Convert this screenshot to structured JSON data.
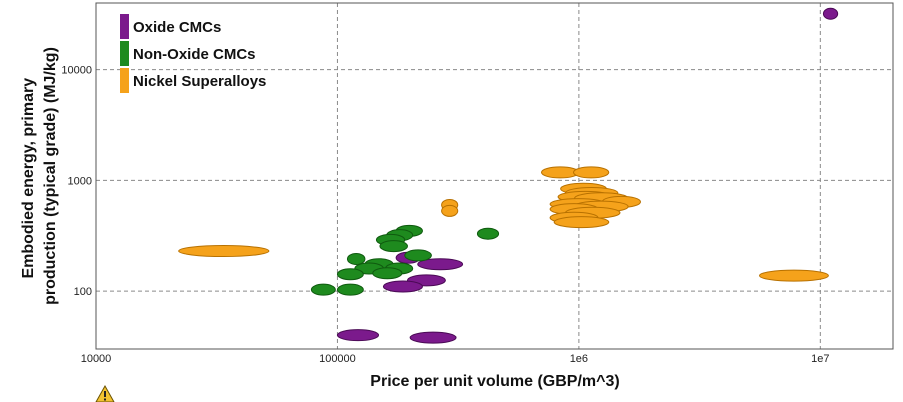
{
  "chart_data": {
    "type": "scatter",
    "xlabel": "Price per unit volume (GBP/m^3)",
    "ylabel_lines": [
      "Embodied energy, primary",
      "production (typical grade) (MJ/kg)"
    ],
    "x_scale": "log",
    "y_scale": "log",
    "xlim": [
      10000,
      20000000
    ],
    "ylim": [
      30,
      40000
    ],
    "x_ticks": [
      {
        "value": 10000,
        "label": "10000"
      },
      {
        "value": 100000,
        "label": "100000"
      },
      {
        "value": 1000000,
        "label": "1e6"
      },
      {
        "value": 10000000,
        "label": "1e7"
      }
    ],
    "y_ticks": [
      {
        "value": 100,
        "label": "100"
      },
      {
        "value": 1000,
        "label": "1000"
      },
      {
        "value": 10000,
        "label": "10000"
      }
    ],
    "grid": true,
    "legend_position": "top-left",
    "warning_icon": "warning-icon",
    "series": [
      {
        "name": "Oxide CMCs",
        "color": "#7b1a8c",
        "stroke": "#4a0a55",
        "points": [
          {
            "x": 11000000,
            "y": 32000,
            "x_min": 10300000,
            "x_max": 11800000
          },
          {
            "x": 195000,
            "y": 200,
            "x_min": 175000,
            "x_max": 220000
          },
          {
            "x": 270000,
            "y": 175,
            "x_min": 215000,
            "x_max": 330000
          },
          {
            "x": 235000,
            "y": 125,
            "x_min": 195000,
            "x_max": 280000
          },
          {
            "x": 185000,
            "y": 110,
            "x_min": 155000,
            "x_max": 225000
          },
          {
            "x": 122000,
            "y": 40,
            "x_min": 100000,
            "x_max": 148000
          },
          {
            "x": 250000,
            "y": 38,
            "x_min": 200000,
            "x_max": 310000
          }
        ]
      },
      {
        "name": "Non-Oxide CMCs",
        "color": "#1e8a1e",
        "stroke": "#0f5a0f",
        "points": [
          {
            "x": 200000,
            "y": 350,
            "x_min": 175000,
            "x_max": 225000
          },
          {
            "x": 180000,
            "y": 320,
            "x_min": 160000,
            "x_max": 205000
          },
          {
            "x": 165000,
            "y": 290,
            "x_min": 145000,
            "x_max": 190000
          },
          {
            "x": 170000,
            "y": 255,
            "x_min": 150000,
            "x_max": 195000
          },
          {
            "x": 215000,
            "y": 210,
            "x_min": 190000,
            "x_max": 245000
          },
          {
            "x": 120000,
            "y": 195,
            "x_min": 110000,
            "x_max": 130000
          },
          {
            "x": 150000,
            "y": 175,
            "x_min": 130000,
            "x_max": 170000
          },
          {
            "x": 135000,
            "y": 160,
            "x_min": 118000,
            "x_max": 155000
          },
          {
            "x": 180000,
            "y": 160,
            "x_min": 158000,
            "x_max": 205000
          },
          {
            "x": 160000,
            "y": 145,
            "x_min": 140000,
            "x_max": 185000
          },
          {
            "x": 113000,
            "y": 142,
            "x_min": 100000,
            "x_max": 128000
          },
          {
            "x": 420000,
            "y": 330,
            "x_min": 380000,
            "x_max": 465000
          },
          {
            "x": 88000,
            "y": 103,
            "x_min": 78000,
            "x_max": 98000
          },
          {
            "x": 113000,
            "y": 103,
            "x_min": 100000,
            "x_max": 128000
          }
        ]
      },
      {
        "name": "Nickel Superalloys",
        "color": "#f5a21b",
        "stroke": "#b87100",
        "points": [
          {
            "x": 35000,
            "y": 230,
            "x_min": 22000,
            "x_max": 52000
          },
          {
            "x": 8000000,
            "y": 138,
            "x_min": 5600000,
            "x_max": 10800000
          },
          {
            "x": 293000,
            "y": 600,
            "x_min": 270000,
            "x_max": 315000
          },
          {
            "x": 293000,
            "y": 530,
            "x_min": 270000,
            "x_max": 315000
          },
          {
            "x": 850000,
            "y": 1180,
            "x_min": 700000,
            "x_max": 1000000
          },
          {
            "x": 1120000,
            "y": 1180,
            "x_min": 950000,
            "x_max": 1330000
          },
          {
            "x": 1050000,
            "y": 840,
            "x_min": 840000,
            "x_max": 1300000
          },
          {
            "x": 1130000,
            "y": 770,
            "x_min": 880000,
            "x_max": 1450000
          },
          {
            "x": 1060000,
            "y": 710,
            "x_min": 820000,
            "x_max": 1380000
          },
          {
            "x": 1250000,
            "y": 690,
            "x_min": 960000,
            "x_max": 1600000
          },
          {
            "x": 1500000,
            "y": 640,
            "x_min": 1250000,
            "x_max": 1800000
          },
          {
            "x": 1000000,
            "y": 610,
            "x_min": 760000,
            "x_max": 1300000
          },
          {
            "x": 1230000,
            "y": 580,
            "x_min": 950000,
            "x_max": 1600000
          },
          {
            "x": 950000,
            "y": 550,
            "x_min": 760000,
            "x_max": 1200000
          },
          {
            "x": 1150000,
            "y": 510,
            "x_min": 880000,
            "x_max": 1480000
          },
          {
            "x": 960000,
            "y": 460,
            "x_min": 760000,
            "x_max": 1200000
          },
          {
            "x": 1030000,
            "y": 420,
            "x_min": 790000,
            "x_max": 1330000
          }
        ]
      }
    ]
  }
}
